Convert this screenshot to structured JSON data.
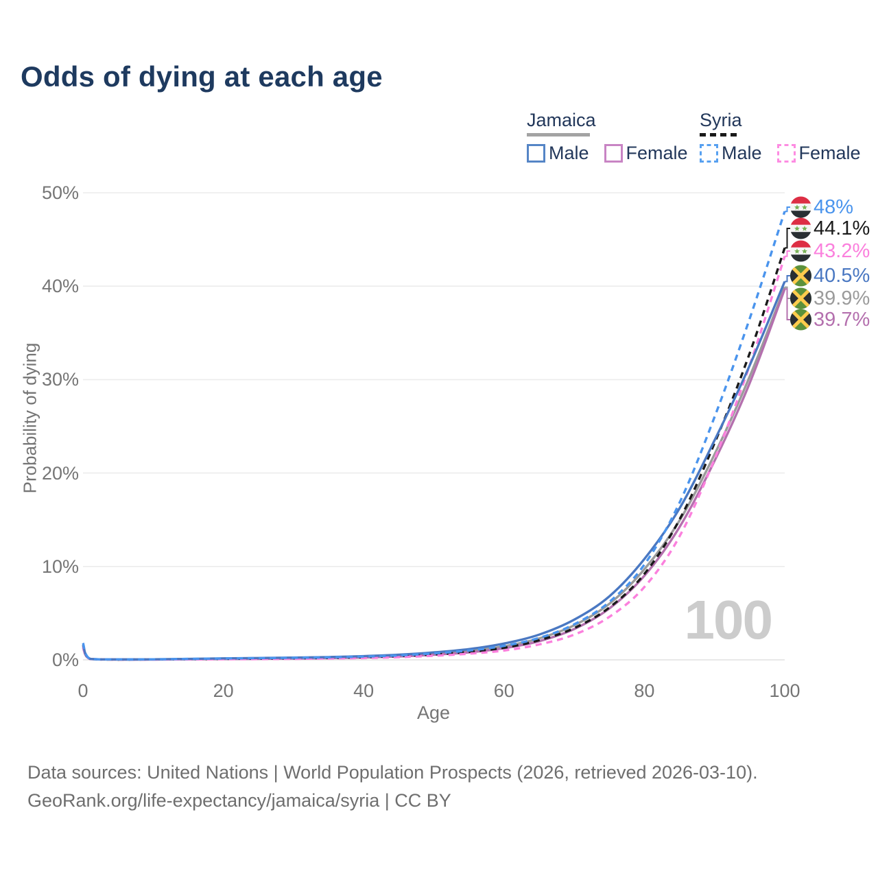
{
  "title": "Odds of dying at each age",
  "legend": {
    "groups": [
      {
        "name": "Jamaica",
        "line_style": "solid",
        "underline_color": "#a3a3a3",
        "items": [
          {
            "label": "Male",
            "color": "#5585c6",
            "dashed": false
          },
          {
            "label": "Female",
            "color": "#c884c4",
            "dashed": false
          }
        ]
      },
      {
        "name": "Syria",
        "line_style": "dashed",
        "underline_color": "#1a1a1a",
        "items": [
          {
            "label": "Male",
            "color": "#57a0f0",
            "dashed": true
          },
          {
            "label": "Female",
            "color": "#fd8ce2",
            "dashed": true
          }
        ]
      }
    ]
  },
  "chart_data": {
    "type": "line",
    "xlabel": "Age",
    "ylabel": "Probability of dying",
    "xlim": [
      0,
      100
    ],
    "ylim": [
      0,
      50
    ],
    "x_ticks": [
      0,
      20,
      40,
      60,
      80,
      100
    ],
    "y_ticks": [
      {
        "value": 0,
        "label": "0%"
      },
      {
        "value": 10,
        "label": "10%"
      },
      {
        "value": 20,
        "label": "20%"
      },
      {
        "value": 30,
        "label": "30%"
      },
      {
        "value": 40,
        "label": "40%"
      },
      {
        "value": 50,
        "label": "50%"
      }
    ],
    "x": [
      0,
      1,
      5,
      10,
      15,
      20,
      25,
      30,
      35,
      40,
      45,
      50,
      55,
      60,
      65,
      70,
      75,
      80,
      85,
      90,
      95,
      100
    ],
    "series": [
      {
        "country": "Syria",
        "label": "Male",
        "flag": "syria",
        "color": "#4a94ed",
        "dashed": true,
        "end_label": "48%",
        "values": [
          1.8,
          0.12,
          0.05,
          0.06,
          0.1,
          0.15,
          0.19,
          0.22,
          0.27,
          0.35,
          0.48,
          0.7,
          1.0,
          1.5,
          2.35,
          3.8,
          6.2,
          10.2,
          16.8,
          26.0,
          36.5,
          48.0
        ]
      },
      {
        "country": "Syria",
        "label": "",
        "flag": "syria",
        "color": "#1a1a1a",
        "dashed": true,
        "end_label": "44.1%",
        "values": [
          1.6,
          0.11,
          0.04,
          0.05,
          0.08,
          0.11,
          0.14,
          0.17,
          0.21,
          0.28,
          0.4,
          0.58,
          0.85,
          1.3,
          2.1,
          3.4,
          5.6,
          9.2,
          15.0,
          23.2,
          32.8,
          44.1
        ]
      },
      {
        "country": "Syria",
        "label": "Female",
        "flag": "syria",
        "color": "#fb80dd",
        "dashed": true,
        "end_label": "43.2%",
        "values": [
          1.4,
          0.1,
          0.03,
          0.04,
          0.05,
          0.07,
          0.09,
          0.11,
          0.15,
          0.2,
          0.29,
          0.44,
          0.66,
          1.0,
          1.65,
          2.7,
          4.6,
          7.8,
          13.2,
          21.5,
          31.5,
          43.2
        ]
      },
      {
        "country": "Jamaica",
        "label": "Male",
        "flag": "jamaica",
        "color": "#4a78c2",
        "dashed": false,
        "end_label": "40.5%",
        "values": [
          1.6,
          0.12,
          0.05,
          0.06,
          0.1,
          0.16,
          0.2,
          0.24,
          0.3,
          0.4,
          0.55,
          0.8,
          1.15,
          1.75,
          2.7,
          4.3,
          6.8,
          10.8,
          16.2,
          23.5,
          31.5,
          40.5
        ]
      },
      {
        "country": "Jamaica",
        "label": "",
        "flag": "jamaica",
        "color": "#9b9b9b",
        "dashed": false,
        "end_label": "39.9%",
        "values": [
          1.45,
          0.11,
          0.04,
          0.05,
          0.08,
          0.12,
          0.15,
          0.19,
          0.24,
          0.32,
          0.45,
          0.65,
          0.95,
          1.45,
          2.3,
          3.7,
          6.0,
          9.7,
          14.9,
          22.0,
          30.3,
          39.9
        ]
      },
      {
        "country": "Jamaica",
        "label": "Female",
        "flag": "jamaica",
        "color": "#b470ae",
        "dashed": false,
        "end_label": "39.7%",
        "values": [
          1.3,
          0.1,
          0.04,
          0.04,
          0.06,
          0.09,
          0.11,
          0.14,
          0.19,
          0.26,
          0.37,
          0.55,
          0.8,
          1.25,
          2.0,
          3.3,
          5.5,
          9.0,
          14.2,
          21.3,
          29.6,
          39.7
        ]
      }
    ],
    "watermark": "100",
    "grid": "horizontal",
    "legend_position": "top-right"
  },
  "footer": {
    "line1": "Data sources: United Nations | World Population Prospects (2026, retrieved 2026-03-10).",
    "line2": "GeoRank.org/life-expectancy/jamaica/syria | CC BY"
  },
  "colors": {
    "title": "#1e3a5f",
    "axis_text": "#757575",
    "gridline": "#ececec",
    "watermark": "#cccccc",
    "footer_text": "#6e6e6e"
  }
}
